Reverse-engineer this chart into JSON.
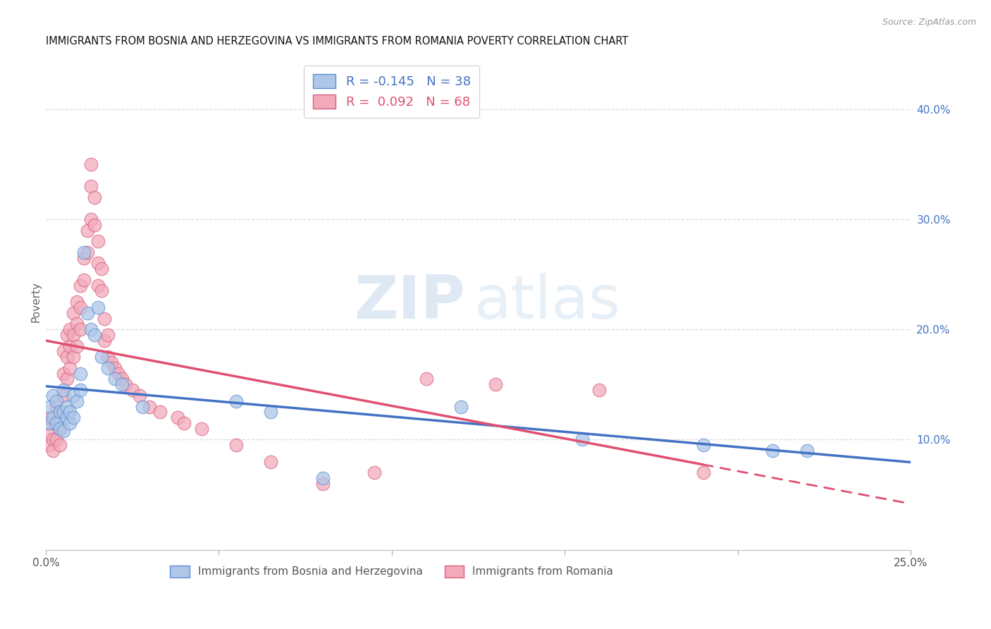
{
  "title": "IMMIGRANTS FROM BOSNIA AND HERZEGOVINA VS IMMIGRANTS FROM ROMANIA POVERTY CORRELATION CHART",
  "source": "Source: ZipAtlas.com",
  "ylabel": "Poverty",
  "xlim": [
    0,
    0.25
  ],
  "ylim": [
    0,
    0.45
  ],
  "xtick_vals": [
    0.0,
    0.05,
    0.1,
    0.15,
    0.2,
    0.25
  ],
  "xtick_labels": [
    "0.0%",
    "",
    "",
    "",
    "",
    "25.0%"
  ],
  "yticks_right": [
    0.1,
    0.2,
    0.3,
    0.4
  ],
  "ytick_labels_right": [
    "10.0%",
    "20.0%",
    "30.0%",
    "40.0%"
  ],
  "legend1_label": "R = -0.145   N = 38",
  "legend2_label": "R =  0.092   N = 68",
  "legend_bottom1": "Immigrants from Bosnia and Herzegovina",
  "legend_bottom2": "Immigrants from Romania",
  "blue_fill": "#aec6e8",
  "pink_fill": "#f2aaba",
  "blue_edge": "#5b8fd4",
  "pink_edge": "#d95f7f",
  "blue_line": "#4472C4",
  "pink_line": "#E05070",
  "grid_color": "#dddddd",
  "bosnia_x": [
    0.001,
    0.001,
    0.002,
    0.002,
    0.003,
    0.003,
    0.004,
    0.004,
    0.005,
    0.005,
    0.005,
    0.006,
    0.006,
    0.007,
    0.007,
    0.008,
    0.008,
    0.009,
    0.01,
    0.01,
    0.011,
    0.012,
    0.013,
    0.014,
    0.015,
    0.016,
    0.018,
    0.02,
    0.022,
    0.028,
    0.055,
    0.065,
    0.08,
    0.12,
    0.155,
    0.19,
    0.21,
    0.22
  ],
  "bosnia_y": [
    0.13,
    0.115,
    0.14,
    0.12,
    0.135,
    0.115,
    0.125,
    0.11,
    0.145,
    0.125,
    0.108,
    0.12,
    0.13,
    0.115,
    0.125,
    0.14,
    0.12,
    0.135,
    0.16,
    0.145,
    0.27,
    0.215,
    0.2,
    0.195,
    0.22,
    0.175,
    0.165,
    0.155,
    0.15,
    0.13,
    0.135,
    0.125,
    0.065,
    0.13,
    0.1,
    0.095,
    0.09,
    0.09
  ],
  "romania_x": [
    0.001,
    0.001,
    0.001,
    0.002,
    0.002,
    0.002,
    0.003,
    0.003,
    0.003,
    0.004,
    0.004,
    0.004,
    0.005,
    0.005,
    0.005,
    0.006,
    0.006,
    0.006,
    0.007,
    0.007,
    0.007,
    0.008,
    0.008,
    0.008,
    0.009,
    0.009,
    0.009,
    0.01,
    0.01,
    0.01,
    0.011,
    0.011,
    0.012,
    0.012,
    0.013,
    0.013,
    0.013,
    0.014,
    0.014,
    0.015,
    0.015,
    0.015,
    0.016,
    0.016,
    0.017,
    0.017,
    0.018,
    0.018,
    0.019,
    0.02,
    0.021,
    0.022,
    0.023,
    0.025,
    0.027,
    0.03,
    0.033,
    0.038,
    0.04,
    0.045,
    0.055,
    0.065,
    0.08,
    0.095,
    0.11,
    0.13,
    0.16,
    0.19
  ],
  "romania_y": [
    0.12,
    0.105,
    0.095,
    0.115,
    0.1,
    0.09,
    0.13,
    0.115,
    0.1,
    0.125,
    0.11,
    0.095,
    0.18,
    0.16,
    0.14,
    0.195,
    0.175,
    0.155,
    0.2,
    0.185,
    0.165,
    0.215,
    0.195,
    0.175,
    0.225,
    0.205,
    0.185,
    0.24,
    0.22,
    0.2,
    0.265,
    0.245,
    0.29,
    0.27,
    0.3,
    0.35,
    0.33,
    0.32,
    0.295,
    0.28,
    0.26,
    0.24,
    0.255,
    0.235,
    0.21,
    0.19,
    0.195,
    0.175,
    0.17,
    0.165,
    0.16,
    0.155,
    0.15,
    0.145,
    0.14,
    0.13,
    0.125,
    0.12,
    0.115,
    0.11,
    0.095,
    0.08,
    0.06,
    0.07,
    0.155,
    0.15,
    0.145,
    0.07
  ],
  "watermark_zip_color": "#c5d8ec",
  "watermark_atlas_color": "#c5d8ec"
}
